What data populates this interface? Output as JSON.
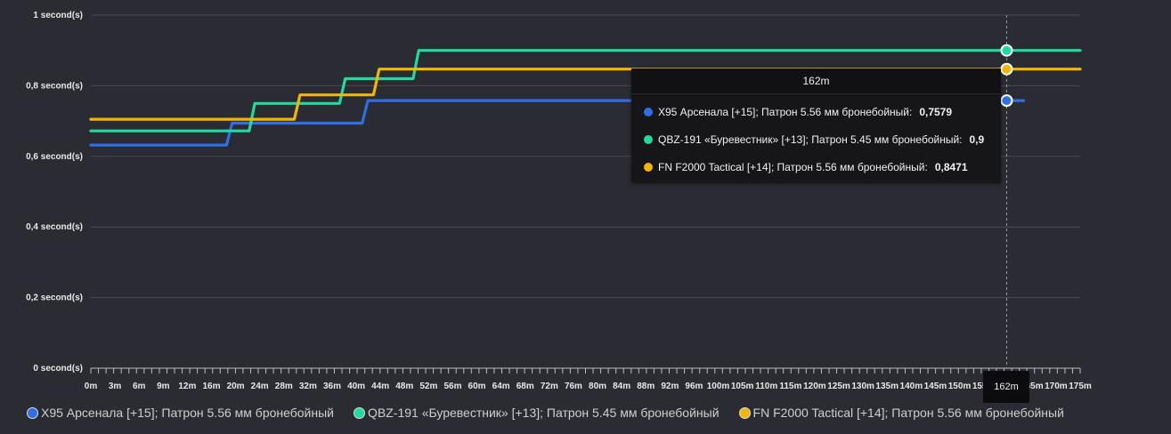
{
  "chart_data": {
    "type": "line",
    "y_unit_suffix": " second(s)",
    "ylim": [
      0,
      1
    ],
    "y_ticks": [
      "0 second(s)",
      "0,2 second(s)",
      "0,4 second(s)",
      "0,6 second(s)",
      "0,8 second(s)",
      "1 second(s)"
    ],
    "y_tick_values": [
      0,
      0.2,
      0.4,
      0.6,
      0.8,
      1
    ],
    "x_ticks": [
      "0m",
      "3m",
      "6m",
      "9m",
      "12m",
      "16m",
      "20m",
      "24m",
      "28m",
      "32m",
      "36m",
      "40m",
      "44m",
      "48m",
      "52m",
      "56m",
      "60m",
      "64m",
      "68m",
      "72m",
      "76m",
      "80m",
      "84m",
      "88m",
      "92m",
      "96m",
      "100m",
      "105m",
      "110m",
      "115m",
      "120m",
      "125m",
      "130m",
      "135m",
      "140m",
      "145m",
      "150m",
      "155m",
      "160m",
      "165m",
      "170m",
      "175m"
    ],
    "grid": true,
    "legend_position": "bottom-left",
    "series": [
      {
        "name": "X95 Арсенала [+15]; Патрон 5.56 мм бронебойный",
        "color": "#2f6fe6",
        "points": [
          [
            0,
            0.632
          ],
          [
            24,
            0.632
          ],
          [
            25,
            0.694
          ],
          [
            48,
            0.694
          ],
          [
            49,
            0.7579
          ],
          [
            165,
            0.7579
          ]
        ]
      },
      {
        "name": "QBZ-191 «Буревестник» [+13]; Патрон 5.45 мм бронебойный",
        "color": "#1fdba0",
        "points": [
          [
            0,
            0.672
          ],
          [
            28,
            0.672
          ],
          [
            29,
            0.75
          ],
          [
            44,
            0.75
          ],
          [
            45,
            0.82
          ],
          [
            57,
            0.82
          ],
          [
            58,
            0.9
          ],
          [
            175,
            0.9
          ]
        ]
      },
      {
        "name": "FN F2000 Tactical [+14]; Патрон 5.56 мм бронебойный",
        "color": "#f2b705",
        "points": [
          [
            0,
            0.705
          ],
          [
            36,
            0.705
          ],
          [
            37,
            0.774
          ],
          [
            50,
            0.774
          ],
          [
            51,
            0.8471
          ],
          [
            175,
            0.8471
          ]
        ]
      }
    ],
    "hover": {
      "x_label": "162m",
      "rows": [
        {
          "name": "X95 Арсенала [+15]; Патрон 5.56 мм бронебойный:",
          "value": "0,7579",
          "color": "#2f6fe6",
          "y": 0.7579
        },
        {
          "name": "QBZ-191 «Буревестник» [+13]; Патрон 5.45 мм бронебойный:",
          "value": "0,9",
          "color": "#1fdba0",
          "y": 0.9
        },
        {
          "name": "FN F2000 Tactical [+14]; Патрон 5.56 мм бронебойный:",
          "value": "0,8471",
          "color": "#f2b705",
          "y": 0.8471
        }
      ]
    }
  },
  "legend": [
    {
      "label": "X95 Арсенала [+15]; Патрон 5.56 мм бронебойный",
      "color": "#2f6fe6"
    },
    {
      "label": "QBZ-191 «Буревестник» [+13]; Патрон 5.45 мм бронебойный",
      "color": "#1fdba0"
    },
    {
      "label": "FN F2000 Tactical [+14]; Патрон 5.56 мм бронебойный",
      "color": "#f2b705"
    }
  ]
}
